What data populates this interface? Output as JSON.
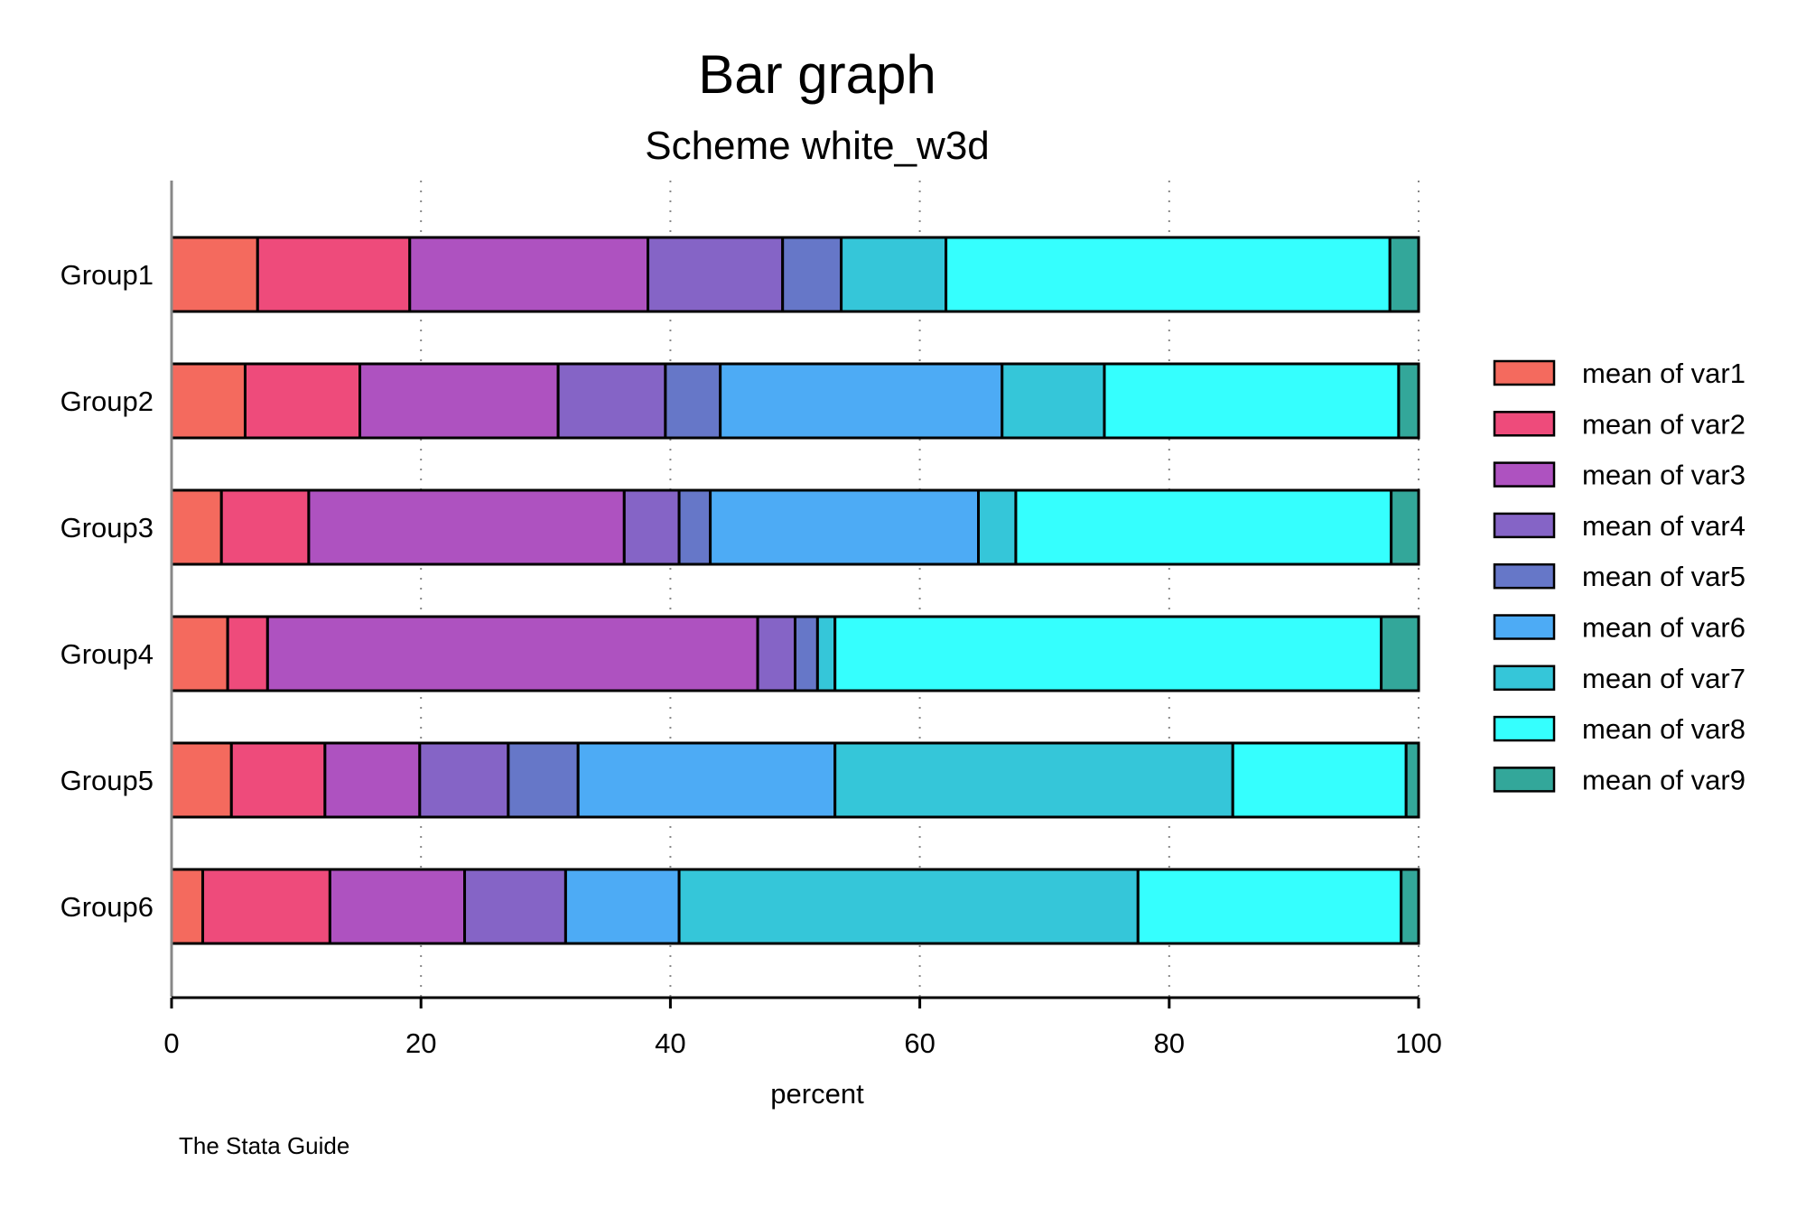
{
  "chart_data": {
    "type": "bar",
    "orientation": "horizontal",
    "stacked": true,
    "title": "Bar graph",
    "subtitle": "Scheme white_w3d",
    "xlabel": "percent",
    "ylabel": "",
    "xlim": [
      0,
      100
    ],
    "xticks": [
      "0",
      "20",
      "40",
      "60",
      "80",
      "100"
    ],
    "grid": "dotted vertical",
    "legend_position": "right",
    "note": "The Stata Guide",
    "categories": [
      "Group1",
      "Group2",
      "Group3",
      "Group4",
      "Group5",
      "Group6"
    ],
    "series": [
      {
        "name": "mean of var1",
        "color": "#f46a5e",
        "values": [
          6.9,
          5.9,
          4.0,
          4.5,
          4.8,
          2.5
        ]
      },
      {
        "name": "mean of var2",
        "color": "#ee4b7b",
        "values": [
          12.2,
          9.2,
          7.0,
          3.2,
          7.5,
          10.2
        ]
      },
      {
        "name": "mean of var3",
        "color": "#ae52c0",
        "values": [
          19.1,
          15.9,
          25.3,
          39.3,
          7.6,
          10.8
        ]
      },
      {
        "name": "mean of var4",
        "color": "#8564c6",
        "values": [
          10.8,
          8.6,
          4.4,
          3.0,
          7.1,
          8.1
        ]
      },
      {
        "name": "mean of var5",
        "color": "#6677c8",
        "values": [
          4.7,
          4.4,
          2.5,
          1.8,
          5.6,
          0.0
        ]
      },
      {
        "name": "mean of var6",
        "color": "#4dabf5",
        "values": [
          0.0,
          22.6,
          21.5,
          0.0,
          20.6,
          9.1
        ]
      },
      {
        "name": "mean of var7",
        "color": "#35c6d9",
        "values": [
          8.4,
          8.2,
          3.0,
          1.4,
          31.9,
          36.8
        ]
      },
      {
        "name": "mean of var8",
        "color": "#35fffe",
        "values": [
          35.6,
          23.6,
          30.1,
          43.8,
          13.9,
          21.1
        ]
      },
      {
        "name": "mean of var9",
        "color": "#33a79a",
        "values": [
          2.3,
          1.6,
          2.2,
          3.0,
          1.0,
          1.4
        ]
      }
    ]
  }
}
